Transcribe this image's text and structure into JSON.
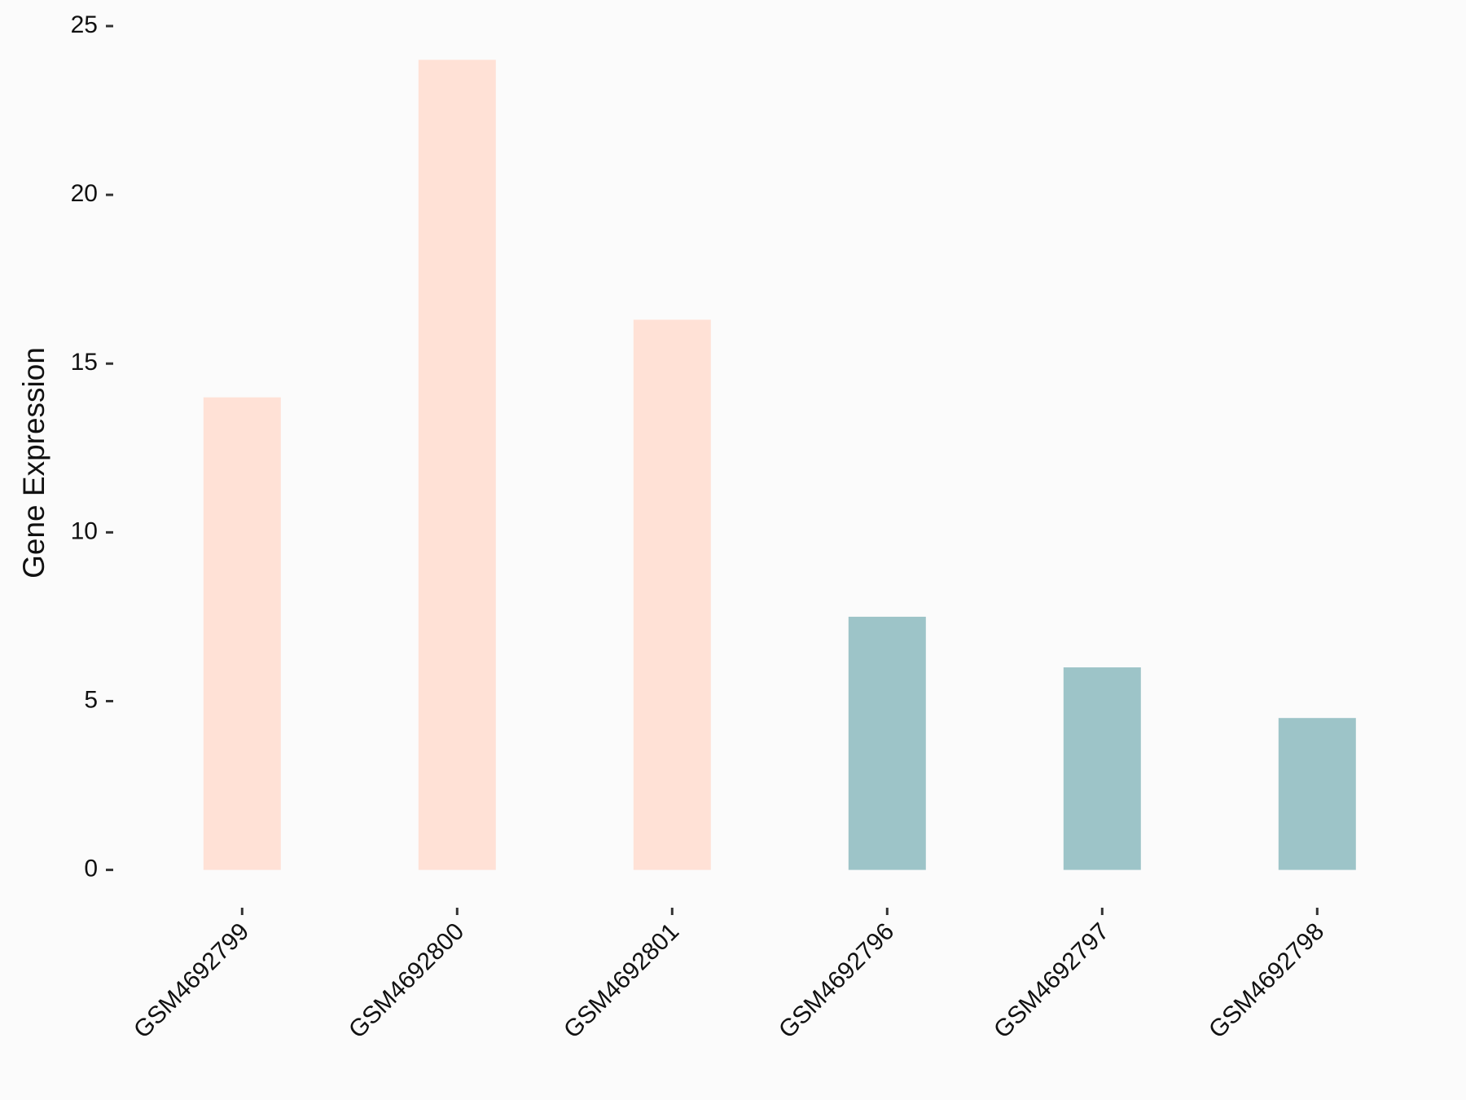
{
  "chart_data": {
    "type": "bar",
    "y_label": "Gene Expression",
    "categories": [
      "GSM4692799",
      "GSM4692800",
      "GSM4692801",
      "GSM4692796",
      "GSM4692797",
      "GSM4692798"
    ],
    "values": [
      14.0,
      24.0,
      16.3,
      7.5,
      6.0,
      4.5
    ],
    "colors": [
      "#FFE1D6",
      "#FFE1D6",
      "#FFE1D6",
      "#9DC4C8",
      "#9DC4C8",
      "#9DC4C8"
    ],
    "ylim": [
      0,
      25
    ],
    "yticks": [
      0,
      5,
      10,
      15,
      20,
      25
    ],
    "grid": false
  }
}
